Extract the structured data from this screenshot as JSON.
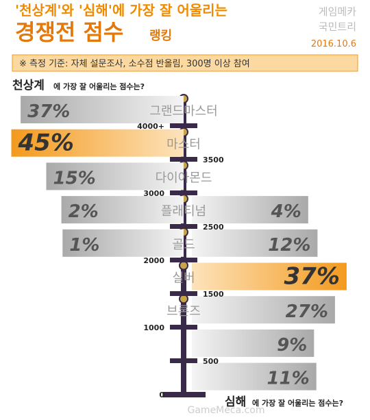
{
  "header": {
    "title_line1": "'천상계'와 '심해'에 가장 잘 어울리는",
    "title_main": "경쟁전 점수",
    "title_suffix": "랭킹",
    "brand_line1": "게임메카",
    "brand_line2": "국민트리",
    "date": "2016.10.6",
    "note": "※ 측정 기준: 자체 설문조사, 소수점 반올림, 300명 이상 참여"
  },
  "chart_data": {
    "type": "diverging_bar",
    "categories": [
      "그랜드마스터",
      "마스터",
      "다이아몬드",
      "플래티넘",
      "골드",
      "실버",
      "브론즈",
      null,
      null
    ],
    "score_labels": [
      "4000+",
      "3500",
      "3000",
      "2500",
      "2000",
      "1500",
      "1000",
      "500",
      "0"
    ],
    "series": [
      {
        "name": "천상계",
        "suffix": "에 가장 잘 어울리는 점수는?",
        "side": "left",
        "color": "#b8b8b8",
        "highlight_color": "#f39a1e",
        "values": [
          37,
          45,
          15,
          2,
          1,
          null,
          null,
          null,
          null
        ],
        "value_labels": [
          "37%",
          "45%",
          "15%",
          "2%",
          "1%",
          null,
          null,
          null,
          null
        ]
      },
      {
        "name": "심해",
        "suffix": "에 가장 잘 어울리는 점수는?",
        "side": "right",
        "color": "#b8b8b8",
        "highlight_color": "#f39a1e",
        "values": [
          null,
          null,
          null,
          4,
          12,
          37,
          27,
          9,
          11
        ],
        "value_labels": [
          null,
          null,
          null,
          "4%",
          "12%",
          "37%",
          "27%",
          "9%",
          "11%"
        ]
      }
    ]
  },
  "footer": {
    "watermark": "GameMeca.com"
  }
}
